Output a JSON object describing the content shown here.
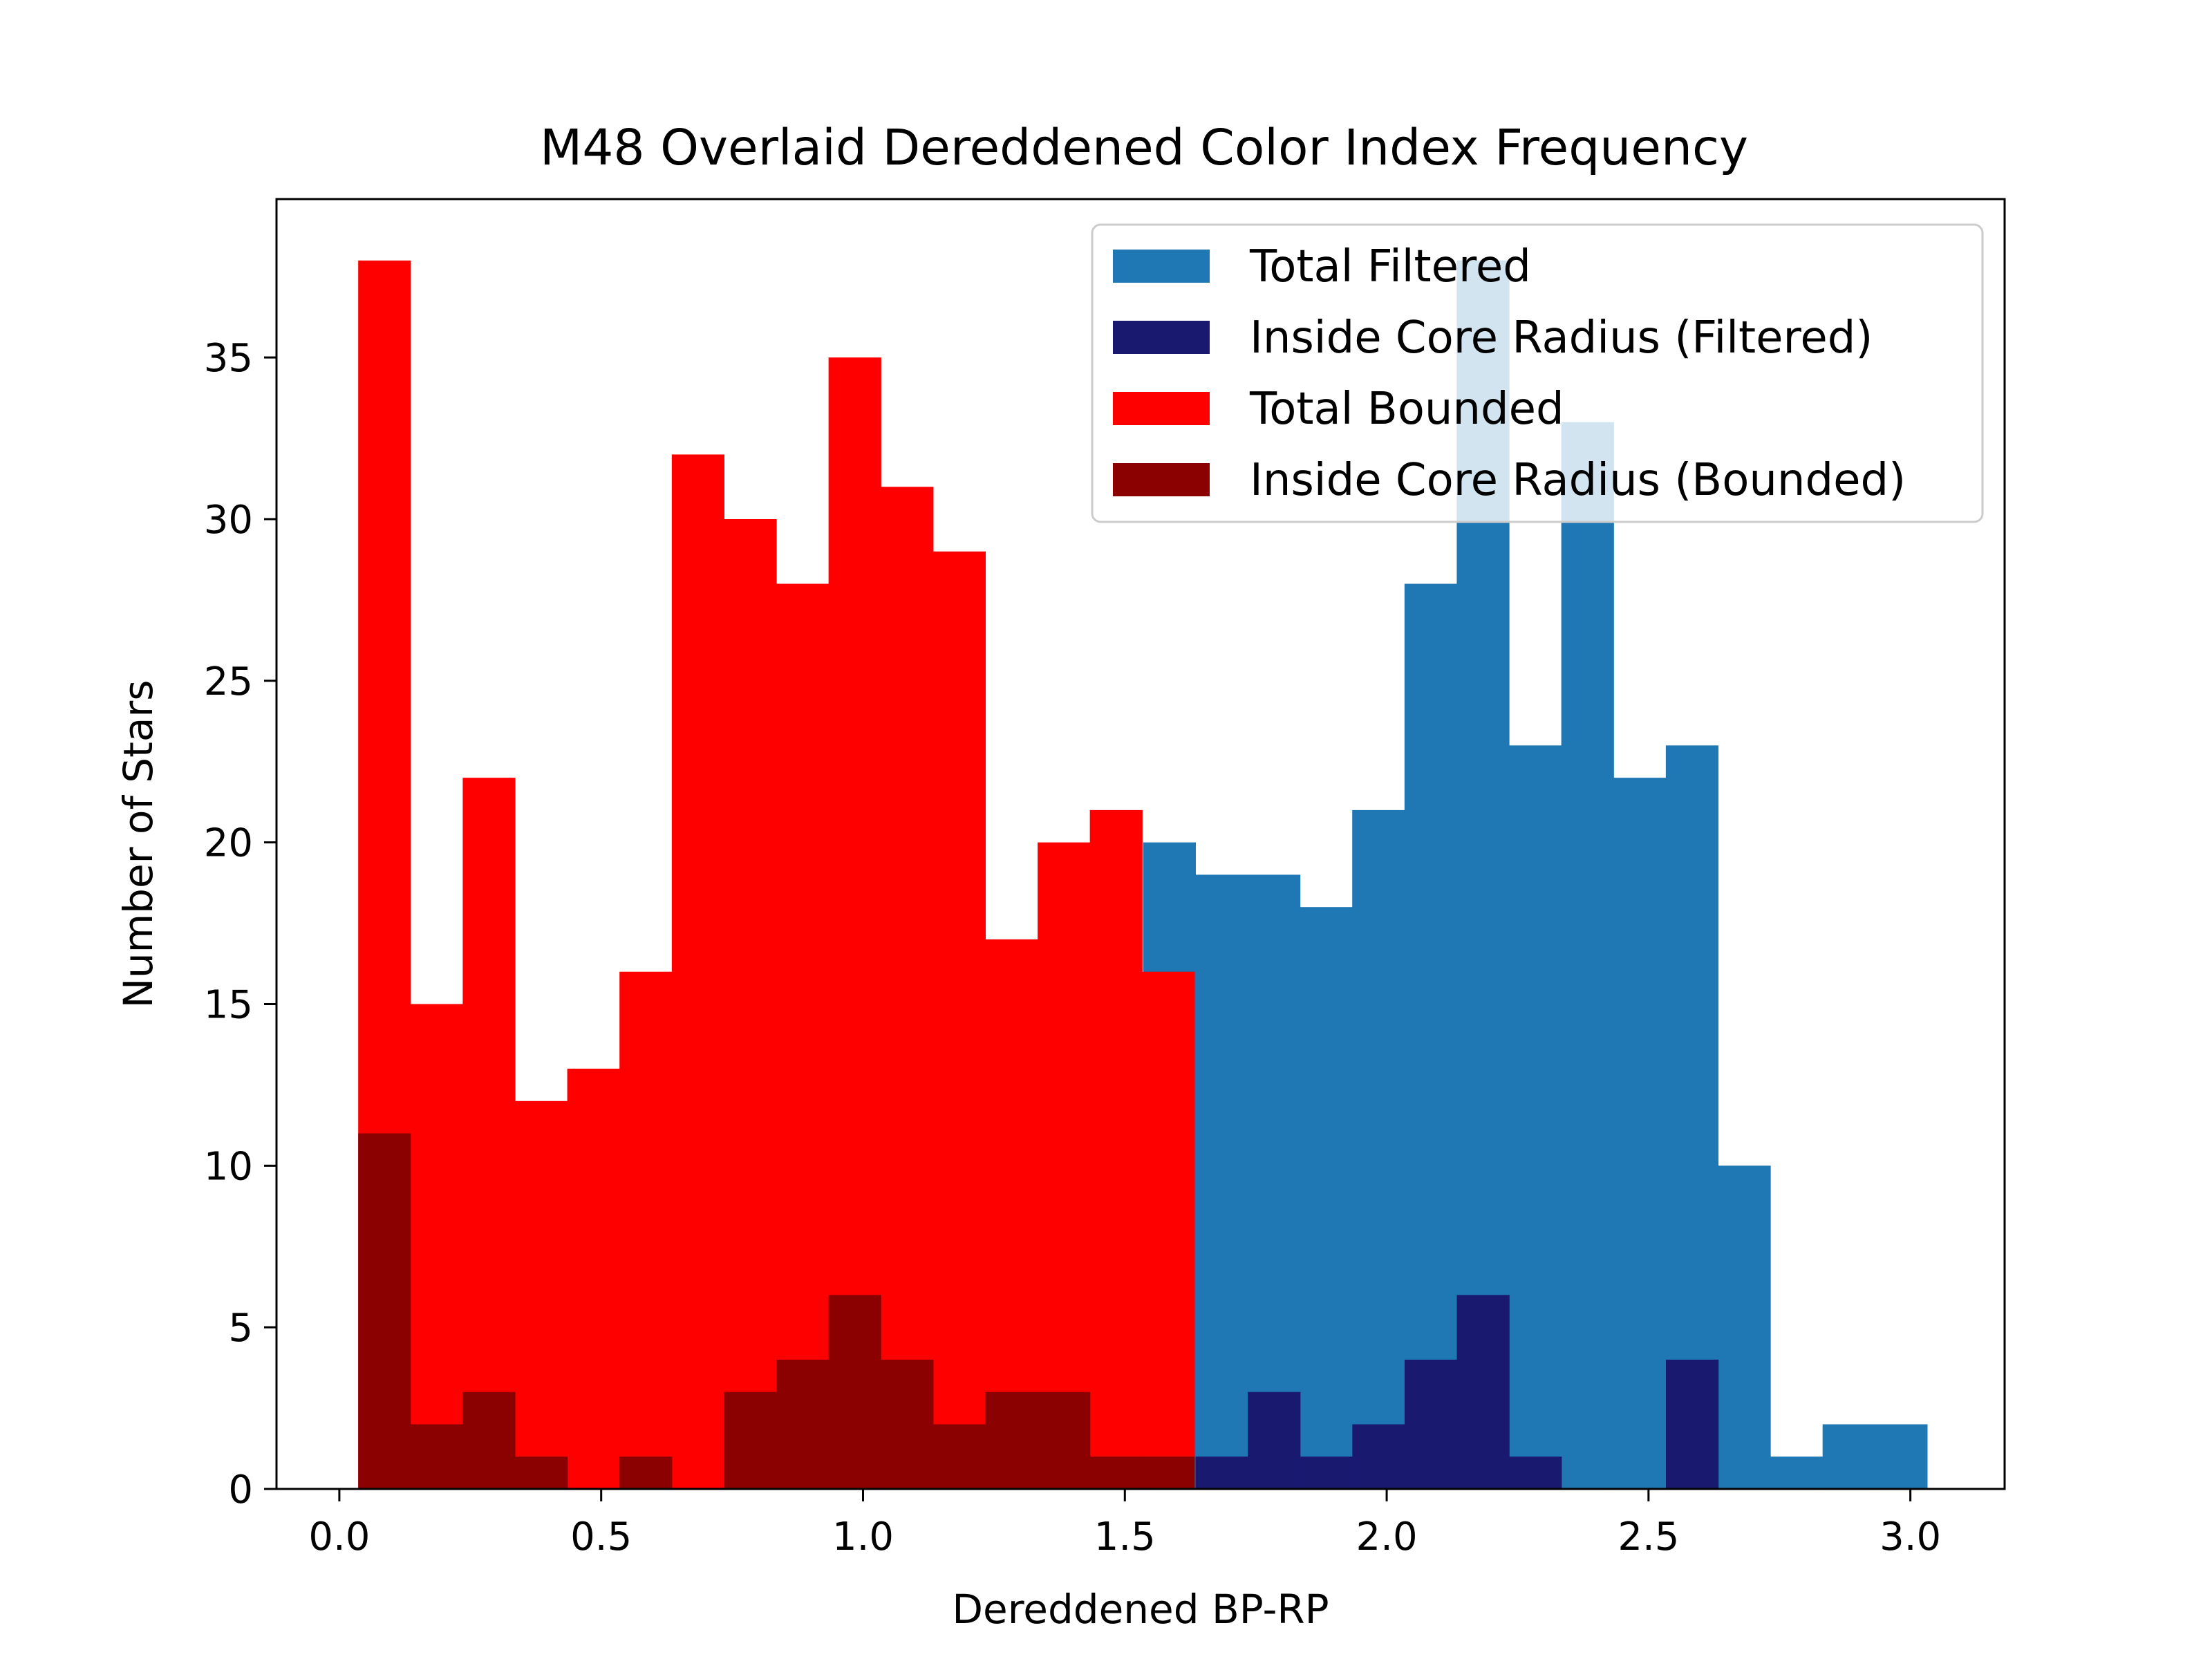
{
  "chart_data": {
    "type": "bar",
    "title": "M48 Overlaid Dereddened Color Index Frequency",
    "xlabel": "Dereddened BP-RP",
    "ylabel": "Number of Stars",
    "xlim": [
      -0.12,
      3.18
    ],
    "ylim": [
      0,
      39.9
    ],
    "xticks": [
      0.0,
      0.5,
      1.0,
      1.5,
      2.0,
      2.5,
      3.0
    ],
    "xtick_labels": [
      "0.0",
      "0.5",
      "1.0",
      "1.5",
      "2.0",
      "2.5",
      "3.0"
    ],
    "yticks": [
      0,
      5,
      10,
      15,
      20,
      25,
      30,
      35
    ],
    "ytick_labels": [
      "0",
      "5",
      "10",
      "15",
      "20",
      "25",
      "30",
      "35"
    ],
    "grid": false,
    "legend_position": "top-right",
    "series": [
      {
        "name": "Total Filtered",
        "color": "#1f77b4",
        "opacity": 1.0,
        "bin_start": 1.535,
        "bin_width": 0.0998,
        "values": [
          20,
          19,
          19,
          18,
          21,
          28,
          38,
          23,
          33,
          22,
          23,
          10,
          1,
          2,
          2
        ]
      },
      {
        "name": "Inside Core Radius (Filtered)",
        "color": "#191970",
        "opacity": 1.0,
        "bin_start": 1.635,
        "bin_width": 0.0998,
        "values": [
          1,
          3,
          1,
          2,
          4,
          6,
          1,
          0,
          0,
          4
        ]
      },
      {
        "name": "Total Bounded",
        "color": "#ff0000",
        "opacity": 1.0,
        "bin_start": 0.036,
        "bin_width": 0.0998,
        "values": [
          38,
          15,
          22,
          12,
          13,
          16,
          32,
          30,
          28,
          35,
          31,
          29,
          17,
          20,
          21,
          16
        ]
      },
      {
        "name": "Inside Core Radius (Bounded)",
        "color": "#8b0000",
        "opacity": 1.0,
        "bin_start": 0.036,
        "bin_width": 0.0998,
        "values": [
          11,
          2,
          3,
          1,
          0,
          1,
          0,
          3,
          4,
          6,
          4,
          2,
          3,
          3,
          1,
          1
        ]
      }
    ],
    "legend_background_opacity": 0.8
  }
}
